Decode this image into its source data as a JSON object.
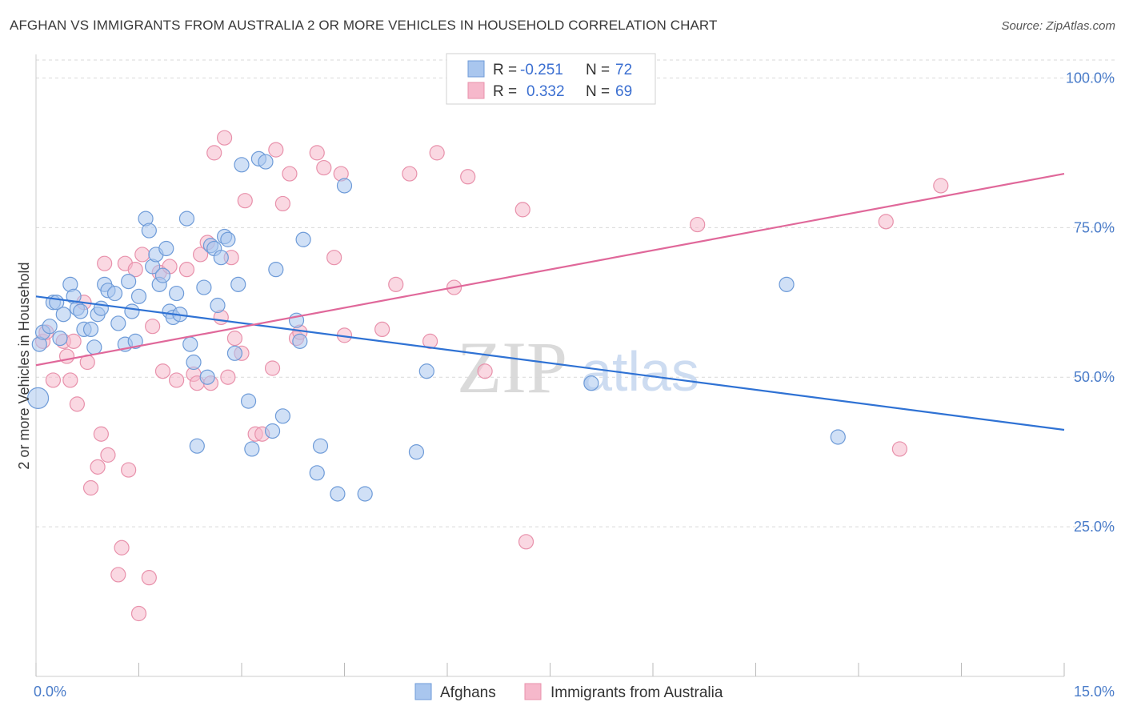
{
  "title": "AFGHAN VS IMMIGRANTS FROM AUSTRALIA 2 OR MORE VEHICLES IN HOUSEHOLD CORRELATION CHART",
  "source": "Source: ZipAtlas.com",
  "watermark": {
    "zip": "ZIP",
    "atlas": "atlas"
  },
  "colors": {
    "blue_fill": "#a9c6ee",
    "blue_stroke": "#6e9bd8",
    "blue_line": "#2f72d4",
    "pink_fill": "#f6b8cb",
    "pink_stroke": "#e891ab",
    "pink_line": "#e0689a",
    "grid": "#d9d9d9",
    "tick_text": "#4a7cc9"
  },
  "legend": {
    "rows": [
      {
        "r_label": "R =",
        "r_value": "-0.251",
        "n_label": "N =",
        "n_value": "72"
      },
      {
        "r_label": "R =",
        "r_value": "0.332",
        "n_label": "N =",
        "n_value": "69"
      }
    ]
  },
  "bottom_legend": {
    "series1": "Afghans",
    "series2": "Immigrants from Australia"
  },
  "chart_data": {
    "type": "scatter",
    "xlabel": "",
    "ylabel": "2 or more Vehicles in Household",
    "xlim": [
      0,
      15
    ],
    "ylim": [
      0,
      103
    ],
    "x_tick_labels": [
      "0.0%",
      "15.0%"
    ],
    "y_ticks": [
      25,
      50,
      75,
      100
    ],
    "y_tick_labels": [
      "25.0%",
      "50.0%",
      "75.0%",
      "100.0%"
    ],
    "grid": true,
    "series": [
      {
        "name": "Afghans",
        "trend": {
          "x": [
            0,
            15
          ],
          "y": [
            63.5,
            41.2
          ]
        },
        "points": [
          [
            0.03,
            46.5
          ],
          [
            0.05,
            55.5
          ],
          [
            0.1,
            57.5
          ],
          [
            0.2,
            58.5
          ],
          [
            0.25,
            62.5
          ],
          [
            0.3,
            62.5
          ],
          [
            0.35,
            56.5
          ],
          [
            0.4,
            60.5
          ],
          [
            0.5,
            65.5
          ],
          [
            0.55,
            63.5
          ],
          [
            0.6,
            61.5
          ],
          [
            0.65,
            61
          ],
          [
            0.7,
            58
          ],
          [
            0.8,
            58
          ],
          [
            0.85,
            55
          ],
          [
            0.9,
            60.5
          ],
          [
            0.95,
            61.5
          ],
          [
            1.0,
            65.5
          ],
          [
            1.05,
            64.5
          ],
          [
            1.15,
            64
          ],
          [
            1.2,
            59
          ],
          [
            1.3,
            55.5
          ],
          [
            1.35,
            66
          ],
          [
            1.4,
            61
          ],
          [
            1.45,
            56
          ],
          [
            1.5,
            63.5
          ],
          [
            1.6,
            76.5
          ],
          [
            1.65,
            74.5
          ],
          [
            1.7,
            68.5
          ],
          [
            1.75,
            70.5
          ],
          [
            1.8,
            65.5
          ],
          [
            1.85,
            67
          ],
          [
            1.9,
            71.5
          ],
          [
            1.95,
            61
          ],
          [
            2.0,
            60
          ],
          [
            2.05,
            64
          ],
          [
            2.1,
            60.5
          ],
          [
            2.2,
            76.5
          ],
          [
            2.25,
            55.5
          ],
          [
            2.3,
            52.5
          ],
          [
            2.35,
            38.5
          ],
          [
            2.45,
            65
          ],
          [
            2.5,
            50
          ],
          [
            2.55,
            72
          ],
          [
            2.6,
            71.5
          ],
          [
            2.65,
            62
          ],
          [
            2.7,
            70
          ],
          [
            2.75,
            73.5
          ],
          [
            2.8,
            73
          ],
          [
            2.9,
            54
          ],
          [
            2.95,
            65.5
          ],
          [
            3.0,
            85.5
          ],
          [
            3.1,
            46
          ],
          [
            3.15,
            38
          ],
          [
            3.25,
            86.5
          ],
          [
            3.35,
            86
          ],
          [
            3.45,
            41
          ],
          [
            3.5,
            68
          ],
          [
            3.6,
            43.5
          ],
          [
            3.8,
            59.5
          ],
          [
            3.85,
            56
          ],
          [
            3.9,
            73
          ],
          [
            4.1,
            34
          ],
          [
            4.15,
            38.5
          ],
          [
            4.4,
            30.5
          ],
          [
            4.5,
            82
          ],
          [
            4.8,
            30.5
          ],
          [
            5.55,
            37.5
          ],
          [
            5.7,
            51
          ],
          [
            8.1,
            49
          ],
          [
            10.95,
            65.5
          ],
          [
            11.7,
            40
          ]
        ]
      },
      {
        "name": "Immigrants from Australia",
        "trend": {
          "x": [
            0,
            15
          ],
          "y": [
            52.0,
            84.0
          ]
        },
        "points": [
          [
            0.1,
            56
          ],
          [
            0.15,
            57.5
          ],
          [
            0.25,
            49.5
          ],
          [
            0.4,
            56
          ],
          [
            0.45,
            53.5
          ],
          [
            0.5,
            49.5
          ],
          [
            0.55,
            56
          ],
          [
            0.6,
            45.5
          ],
          [
            0.7,
            62.5
          ],
          [
            0.75,
            52.5
          ],
          [
            0.8,
            31.5
          ],
          [
            0.9,
            35
          ],
          [
            0.95,
            40.5
          ],
          [
            1.0,
            69
          ],
          [
            1.05,
            37
          ],
          [
            1.2,
            17
          ],
          [
            1.25,
            21.5
          ],
          [
            1.3,
            69
          ],
          [
            1.35,
            34.5
          ],
          [
            1.45,
            68
          ],
          [
            1.5,
            10.5
          ],
          [
            1.55,
            70.5
          ],
          [
            1.65,
            16.5
          ],
          [
            1.7,
            58.5
          ],
          [
            1.8,
            67.5
          ],
          [
            1.85,
            51
          ],
          [
            1.95,
            68.5
          ],
          [
            2.05,
            49.5
          ],
          [
            2.2,
            68
          ],
          [
            2.3,
            50.5
          ],
          [
            2.35,
            49
          ],
          [
            2.4,
            70.5
          ],
          [
            2.5,
            72.5
          ],
          [
            2.55,
            49
          ],
          [
            2.6,
            87.5
          ],
          [
            2.7,
            60
          ],
          [
            2.75,
            90
          ],
          [
            2.8,
            50
          ],
          [
            2.85,
            70
          ],
          [
            2.9,
            56.5
          ],
          [
            3.0,
            54
          ],
          [
            3.05,
            79.5
          ],
          [
            3.2,
            40.5
          ],
          [
            3.3,
            40.5
          ],
          [
            3.45,
            51.5
          ],
          [
            3.5,
            88
          ],
          [
            3.6,
            79
          ],
          [
            3.7,
            84
          ],
          [
            3.8,
            56.5
          ],
          [
            3.85,
            57.5
          ],
          [
            4.1,
            87.5
          ],
          [
            4.2,
            85
          ],
          [
            4.35,
            70
          ],
          [
            4.45,
            84
          ],
          [
            4.5,
            57
          ],
          [
            5.05,
            58
          ],
          [
            5.25,
            65.5
          ],
          [
            5.45,
            84
          ],
          [
            5.75,
            56
          ],
          [
            5.85,
            87.5
          ],
          [
            6.1,
            65
          ],
          [
            6.3,
            83.5
          ],
          [
            6.55,
            51
          ],
          [
            7.1,
            78
          ],
          [
            9.65,
            75.5
          ],
          [
            12.4,
            76
          ],
          [
            12.6,
            38
          ],
          [
            13.2,
            82
          ],
          [
            7.15,
            22.5
          ]
        ]
      }
    ]
  }
}
